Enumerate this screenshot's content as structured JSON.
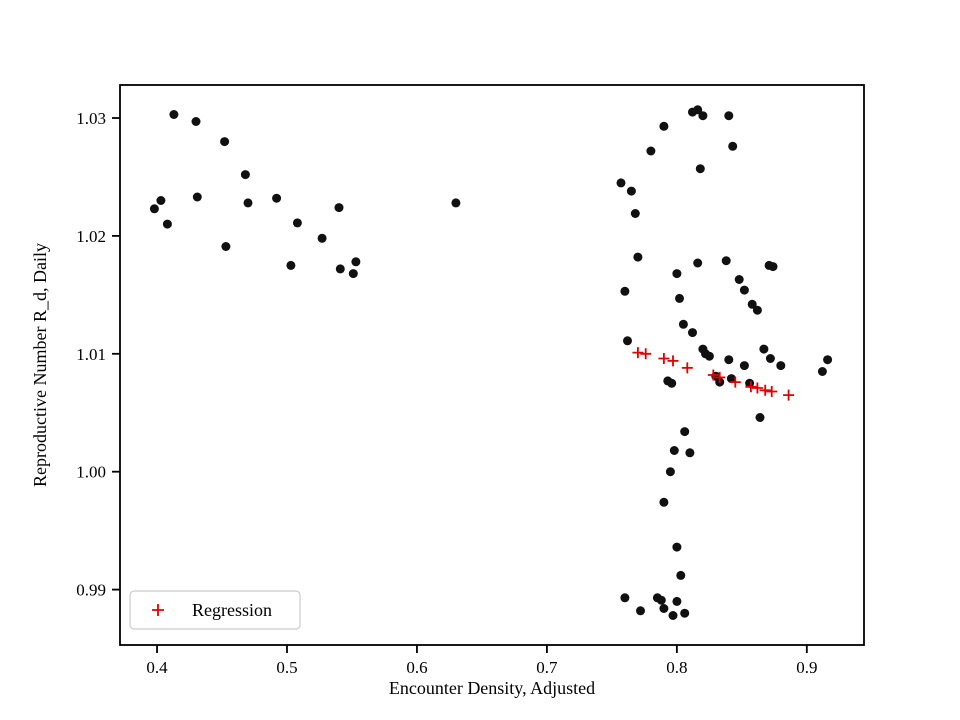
{
  "chart_data": {
    "type": "scatter",
    "title": "",
    "xlabel": "Encounter Density, Adjusted",
    "ylabel": "Reproductive Number R_d, Daily",
    "xlim": [
      0.3715,
      0.944
    ],
    "ylim": [
      0.9853,
      1.0328
    ],
    "xticks": [
      0.4,
      0.5,
      0.6,
      0.7,
      0.8,
      0.9
    ],
    "xtick_labels": [
      "0.4",
      "0.5",
      "0.6",
      "0.7",
      "0.8",
      "0.9"
    ],
    "yticks": [
      0.99,
      1.0,
      1.01,
      1.02,
      1.03
    ],
    "ytick_labels": [
      "0.99",
      "1.00",
      "1.01",
      "1.02",
      "1.03"
    ],
    "grid": false,
    "legend": {
      "label": "Regression",
      "position": "lower left",
      "marker": "plus",
      "color": "#e00000"
    },
    "series": [
      {
        "name": "observations",
        "marker": "circle",
        "color": "#111111",
        "points": [
          [
            0.398,
            1.0223
          ],
          [
            0.403,
            1.023
          ],
          [
            0.408,
            1.021
          ],
          [
            0.413,
            1.0303
          ],
          [
            0.43,
            1.0297
          ],
          [
            0.431,
            1.0233
          ],
          [
            0.452,
            1.028
          ],
          [
            0.453,
            1.0191
          ],
          [
            0.468,
            1.0252
          ],
          [
            0.47,
            1.0228
          ],
          [
            0.492,
            1.0232
          ],
          [
            0.503,
            1.0175
          ],
          [
            0.508,
            1.0211
          ],
          [
            0.527,
            1.0198
          ],
          [
            0.54,
            1.0224
          ],
          [
            0.541,
            1.0172
          ],
          [
            0.551,
            1.0168
          ],
          [
            0.553,
            1.0178
          ],
          [
            0.63,
            1.0228
          ],
          [
            0.757,
            1.0245
          ],
          [
            0.76,
            1.0153
          ],
          [
            0.762,
            1.0111
          ],
          [
            0.765,
            1.0238
          ],
          [
            0.768,
            1.0219
          ],
          [
            0.77,
            1.0182
          ],
          [
            0.78,
            1.0272
          ],
          [
            0.79,
            1.0293
          ],
          [
            0.812,
            1.0305
          ],
          [
            0.816,
            1.0307
          ],
          [
            0.82,
            1.0302
          ],
          [
            0.818,
            1.0257
          ],
          [
            0.84,
            1.0302
          ],
          [
            0.843,
            1.0276
          ],
          [
            0.8,
            1.0168
          ],
          [
            0.802,
            1.0147
          ],
          [
            0.816,
            1.0177
          ],
          [
            0.838,
            1.0179
          ],
          [
            0.848,
            1.0163
          ],
          [
            0.852,
            1.0154
          ],
          [
            0.858,
            1.0142
          ],
          [
            0.862,
            1.0137
          ],
          [
            0.871,
            1.0175
          ],
          [
            0.874,
            1.0174
          ],
          [
            0.805,
            1.0125
          ],
          [
            0.812,
            1.0118
          ],
          [
            0.82,
            1.0104
          ],
          [
            0.822,
            1.01
          ],
          [
            0.825,
            1.0098
          ],
          [
            0.84,
            1.0095
          ],
          [
            0.852,
            1.009
          ],
          [
            0.867,
            1.0104
          ],
          [
            0.872,
            1.0096
          ],
          [
            0.88,
            1.009
          ],
          [
            0.912,
            1.0085
          ],
          [
            0.916,
            1.0095
          ],
          [
            0.793,
            1.0077
          ],
          [
            0.796,
            1.0075
          ],
          [
            0.83,
            1.0081
          ],
          [
            0.833,
            1.0076
          ],
          [
            0.842,
            1.0079
          ],
          [
            0.856,
            1.0075
          ],
          [
            0.864,
            1.0046
          ],
          [
            0.806,
            1.0034
          ],
          [
            0.798,
            1.0018
          ],
          [
            0.81,
            1.0016
          ],
          [
            0.795,
            1.0
          ],
          [
            0.79,
            0.9974
          ],
          [
            0.8,
            0.9936
          ],
          [
            0.803,
            0.9912
          ],
          [
            0.76,
            0.9893
          ],
          [
            0.772,
            0.9882
          ],
          [
            0.785,
            0.9893
          ],
          [
            0.788,
            0.9891
          ],
          [
            0.79,
            0.9884
          ],
          [
            0.797,
            0.9878
          ],
          [
            0.8,
            0.989
          ],
          [
            0.806,
            0.988
          ]
        ]
      },
      {
        "name": "Regression",
        "marker": "plus",
        "color": "#e00000",
        "points": [
          [
            0.77,
            1.0101
          ],
          [
            0.776,
            1.01
          ],
          [
            0.79,
            1.0096
          ],
          [
            0.797,
            1.0094
          ],
          [
            0.808,
            1.0088
          ],
          [
            0.828,
            1.0082
          ],
          [
            0.833,
            1.008
          ],
          [
            0.845,
            1.0076
          ],
          [
            0.857,
            1.0072
          ],
          [
            0.862,
            1.0071
          ],
          [
            0.868,
            1.0069
          ],
          [
            0.873,
            1.0068
          ],
          [
            0.886,
            1.0065
          ]
        ]
      }
    ]
  }
}
